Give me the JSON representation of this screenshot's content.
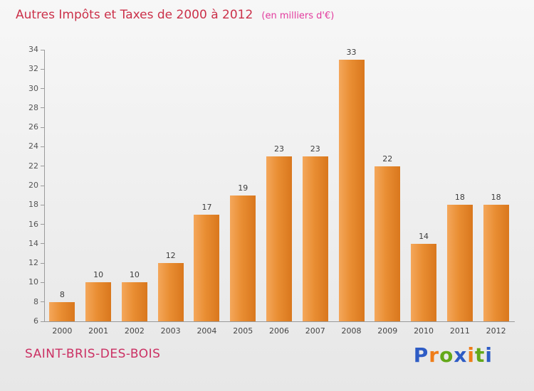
{
  "footer": {
    "commune": "SAINT-BRIS-DES-BOIS"
  },
  "logo": {
    "letters": [
      {
        "ch": "P",
        "color": "#2e5cc5"
      },
      {
        "ch": "r",
        "color": "#ef7d19"
      },
      {
        "ch": "o",
        "color": "#63a819"
      },
      {
        "ch": "x",
        "color": "#2e5cc5"
      },
      {
        "ch": "i",
        "color": "#ef7d19"
      },
      {
        "ch": "t",
        "color": "#63a819"
      },
      {
        "ch": "i",
        "color": "#2e5cc5"
      }
    ]
  },
  "colors": {
    "bar": "#e98e33",
    "title": "#cb3049",
    "subtitle": "#e23a9d",
    "commune": "#cb3063",
    "axis": "#9a9a9a"
  },
  "chart_data": {
    "type": "bar",
    "title": "Autres Impôts et Taxes de 2000 à 2012",
    "subtitle": "(en milliers d'€)",
    "categories": [
      "2000",
      "2001",
      "2002",
      "2003",
      "2004",
      "2005",
      "2006",
      "2007",
      "2008",
      "2009",
      "2010",
      "2011",
      "2012"
    ],
    "values": [
      8,
      10,
      10,
      12,
      17,
      19,
      23,
      23,
      33,
      22,
      14,
      18,
      18
    ],
    "xlabel": "",
    "ylabel": "",
    "ylim": [
      6,
      34
    ],
    "ytick_step": 2,
    "grid": false,
    "legend": false,
    "bar_color": "#e98e33"
  }
}
